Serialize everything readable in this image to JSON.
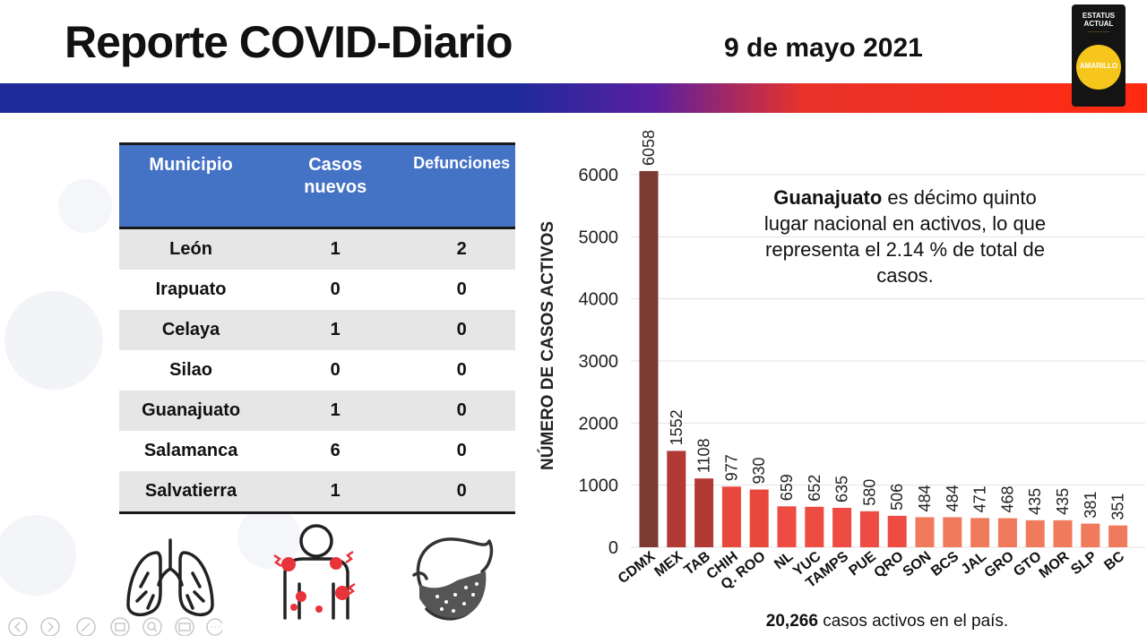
{
  "header": {
    "title": "Reporte COVID-Diario",
    "date": "9 de mayo 2021"
  },
  "status_badge": {
    "line1": "ESTATUS",
    "line2": "ACTUAL",
    "label": "AMARILLO",
    "color": "#f7c61d"
  },
  "table": {
    "headers": [
      "Municipio",
      "Casos nuevos",
      "Defunciones"
    ],
    "rows": [
      {
        "municipio": "León",
        "casos": "1",
        "defunciones": "2"
      },
      {
        "municipio": "Irapuato",
        "casos": "0",
        "defunciones": "0"
      },
      {
        "municipio": "Celaya",
        "casos": "1",
        "defunciones": "0"
      },
      {
        "municipio": "Silao",
        "casos": "0",
        "defunciones": "0"
      },
      {
        "municipio": "Guanajuato",
        "casos": "1",
        "defunciones": "0"
      },
      {
        "municipio": "Salamanca",
        "casos": "6",
        "defunciones": "0"
      },
      {
        "municipio": "Salvatierra",
        "casos": "1",
        "defunciones": "0"
      }
    ],
    "header_color": "#4472c4"
  },
  "icons": [
    "lungs-icon",
    "body-pain-icon",
    "face-mask-icon"
  ],
  "note": {
    "bold": "Guanajuato",
    "text": " es décimo quinto lugar nacional en activos, lo que representa el 2.14 % de total de casos."
  },
  "footer": {
    "bold": "20,266",
    "text": " casos activos en el país."
  },
  "chart_data": {
    "type": "bar",
    "ylabel": "NÚMERO DE CASOS ACTIVOS",
    "xlabel": "",
    "ylim": [
      0,
      6000
    ],
    "yticks": [
      0,
      1000,
      2000,
      3000,
      4000,
      5000,
      6000
    ],
    "grid": true,
    "categories": [
      "CDMX",
      "MEX",
      "TAB",
      "CHIH",
      "Q. ROO",
      "NL",
      "YUC",
      "TAMPS",
      "PUE",
      "QRO",
      "SON",
      "BCS",
      "JAL",
      "GRO",
      "GTO",
      "MOR",
      "SLP",
      "BC"
    ],
    "values": [
      6058,
      1552,
      1108,
      977,
      930,
      659,
      652,
      635,
      580,
      506,
      484,
      484,
      471,
      468,
      435,
      435,
      381,
      351
    ],
    "value_labels": [
      "6058",
      "1552",
      "1108",
      "977",
      "930",
      "659",
      "652",
      "635",
      "580",
      "506",
      "484",
      "484",
      "471",
      "468",
      "435",
      "435",
      "381",
      "351"
    ],
    "colors": [
      "#7b3b33",
      "#b23a34",
      "#b23a34",
      "#e8473c",
      "#e8473c",
      "#ee4b42",
      "#ee4b42",
      "#ee4b42",
      "#ee4b42",
      "#ee4b42",
      "#f07a5c",
      "#f07a5c",
      "#f07a5c",
      "#f07a5c",
      "#f07a5c",
      "#f07a5c",
      "#f07a5c",
      "#f07a5c"
    ]
  }
}
